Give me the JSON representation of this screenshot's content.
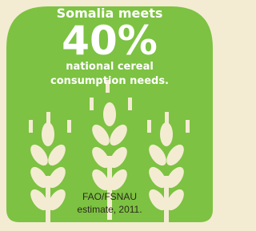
{
  "headline": "Somalia meets",
  "highlight": "40%",
  "subtext": [
    "national cereal",
    "consumption needs."
  ],
  "source": [
    "FAO/FSNAU",
    "estimate, 2011."
  ]
}
